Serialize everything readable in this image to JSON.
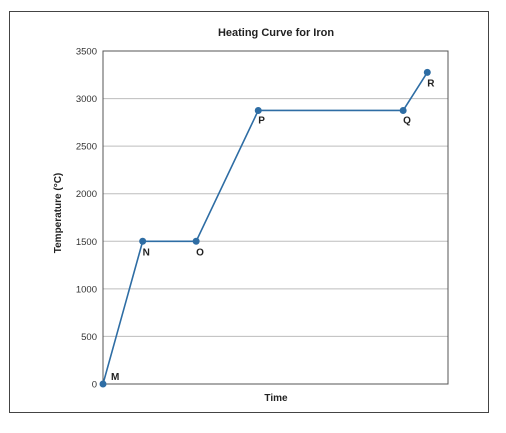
{
  "chart_data": {
    "type": "line",
    "title": "Heating Curve for Iron",
    "xlabel": "Time",
    "ylabel": "Temperature (°C)",
    "ylim": [
      0,
      3500
    ],
    "yticks": [
      0,
      500,
      1000,
      1500,
      2000,
      2500,
      3000,
      3500
    ],
    "grid": true,
    "line_color": "#2e6da4",
    "marker_color": "#2e6da4",
    "points": [
      {
        "label": "M",
        "x": 0.0,
        "y": 0
      },
      {
        "label": "N",
        "x": 0.115,
        "y": 1500
      },
      {
        "label": "O",
        "x": 0.27,
        "y": 1500
      },
      {
        "label": "P",
        "x": 0.45,
        "y": 2875
      },
      {
        "label": "Q",
        "x": 0.87,
        "y": 2875
      },
      {
        "label": "R",
        "x": 0.94,
        "y": 3275
      }
    ]
  }
}
